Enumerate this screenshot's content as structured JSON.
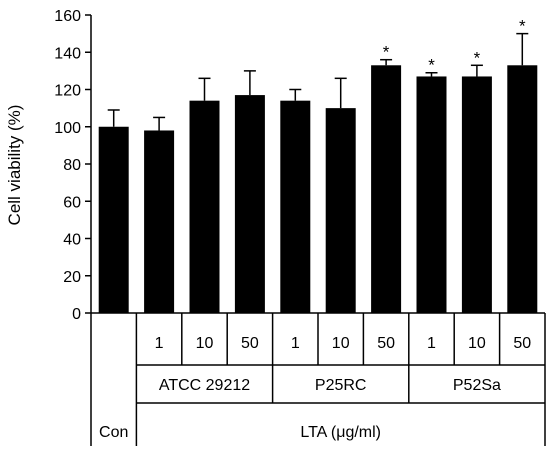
{
  "chart_data": {
    "type": "bar",
    "ylabel": "Cell viability (%)",
    "ylim": [
      0,
      160
    ],
    "yticks": [
      0,
      20,
      40,
      60,
      80,
      100,
      120,
      140,
      160
    ],
    "grid": false,
    "bar_color": "#000000",
    "significance_marker": "*",
    "categories": [
      "Con",
      "ATCC 29212 1",
      "ATCC 29212 10",
      "ATCC 29212 50",
      "P25RC 1",
      "P25RC 10",
      "P25RC 50",
      "P52Sa 1",
      "P52Sa 10",
      "P52Sa 50"
    ],
    "values": [
      100,
      98,
      114,
      117,
      114,
      110,
      133,
      127,
      127,
      133
    ],
    "error": [
      9,
      7,
      12,
      13,
      6,
      16,
      3,
      2,
      6,
      17
    ],
    "significant": [
      false,
      false,
      false,
      false,
      false,
      false,
      true,
      true,
      true,
      true
    ],
    "concentration_labels": [
      "",
      "1",
      "10",
      "50",
      "1",
      "10",
      "50",
      "1",
      "10",
      "50"
    ],
    "groups": [
      {
        "label": "ATCC 29212",
        "from": 1,
        "to": 3
      },
      {
        "label": "P25RC",
        "from": 4,
        "to": 6
      },
      {
        "label": "P52Sa",
        "from": 7,
        "to": 9
      }
    ],
    "control_label": "Con",
    "treatment_label": "LTA (μg/ml)"
  }
}
